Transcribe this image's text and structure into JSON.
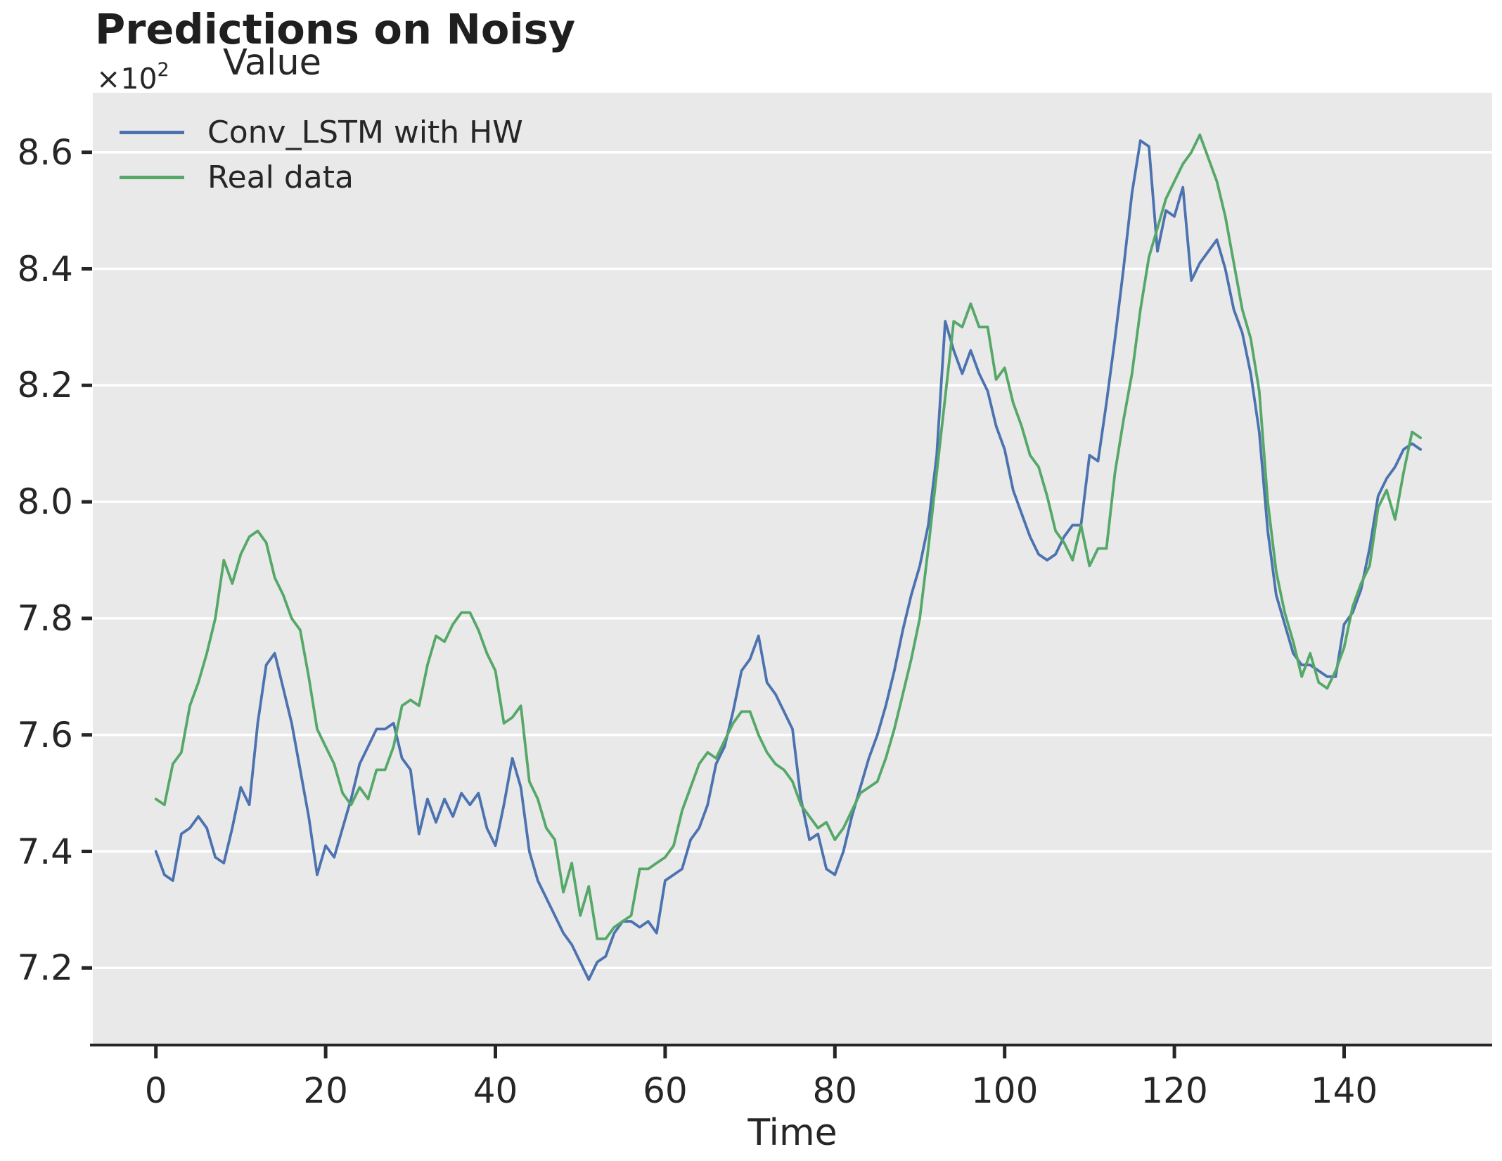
{
  "chart": {
    "title": "Predictions on Noisy",
    "y_label": "Value",
    "x_label": "Time",
    "y_offset_base": "×10",
    "y_offset_exp": "2"
  },
  "chart_data": {
    "type": "line",
    "title": "Predictions on Noisy",
    "xlabel": "Time",
    "ylabel": "Value",
    "y_offset_text": "×10²",
    "x": "index 0..149 (Time)",
    "xlim": [
      -7.4,
      157.4
    ],
    "ylim": [
      7.07,
      8.7
    ],
    "x_tick_values": [
      0,
      20,
      40,
      60,
      80,
      100,
      120,
      140
    ],
    "x_tick_labels": [
      "0",
      "20",
      "40",
      "60",
      "80",
      "100",
      "120",
      "140"
    ],
    "y_tick_values": [
      8.6,
      8.4,
      8.2,
      8.0,
      7.8,
      7.6,
      7.4,
      7.2
    ],
    "y_tick_labels": [
      "8.6",
      "8.4",
      "8.2",
      "8.0",
      "7.8",
      "7.6",
      "7.4",
      "7.2"
    ],
    "grid": "horizontal white lines on",
    "legend_position": "upper left, no frame",
    "plot_background": "#E9E9E9",
    "gridline_color": "#FFFFFF",
    "axis_color": "#262626",
    "series": [
      {
        "name": "Conv_LSTM with HW",
        "color": "#4C72B0",
        "values": [
          7.4,
          7.36,
          7.35,
          7.43,
          7.44,
          7.46,
          7.44,
          7.39,
          7.38,
          7.44,
          7.51,
          7.48,
          7.62,
          7.72,
          7.74,
          7.68,
          7.62,
          7.54,
          7.46,
          7.36,
          7.41,
          7.39,
          7.44,
          7.49,
          7.55,
          7.58,
          7.61,
          7.61,
          7.62,
          7.56,
          7.54,
          7.43,
          7.49,
          7.45,
          7.49,
          7.46,
          7.5,
          7.48,
          7.5,
          7.44,
          7.41,
          7.48,
          7.56,
          7.51,
          7.4,
          7.35,
          7.32,
          7.29,
          7.26,
          7.24,
          7.21,
          7.18,
          7.21,
          7.22,
          7.26,
          7.28,
          7.28,
          7.27,
          7.28,
          7.26,
          7.35,
          7.36,
          7.37,
          7.42,
          7.44,
          7.48,
          7.55,
          7.58,
          7.64,
          7.71,
          7.73,
          7.77,
          7.69,
          7.67,
          7.64,
          7.61,
          7.49,
          7.42,
          7.43,
          7.37,
          7.36,
          7.4,
          7.46,
          7.51,
          7.56,
          7.6,
          7.65,
          7.71,
          7.78,
          7.84,
          7.89,
          7.96,
          8.08,
          8.31,
          8.26,
          8.22,
          8.26,
          8.22,
          8.19,
          8.13,
          8.09,
          8.02,
          7.98,
          7.94,
          7.91,
          7.9,
          7.91,
          7.94,
          7.96,
          7.96,
          8.08,
          8.07,
          8.17,
          8.28,
          8.4,
          8.53,
          8.62,
          8.61,
          8.43,
          8.5,
          8.49,
          8.54,
          8.38,
          8.41,
          8.43,
          8.45,
          8.4,
          8.33,
          8.29,
          8.22,
          8.12,
          7.95,
          7.84,
          7.79,
          7.74,
          7.72,
          7.72,
          7.71,
          7.7,
          7.7,
          7.79,
          7.81,
          7.85,
          7.92,
          8.01,
          8.04,
          8.06,
          8.09,
          8.1,
          8.09
        ]
      },
      {
        "name": "Real data",
        "color": "#55A868",
        "values": [
          7.49,
          7.48,
          7.55,
          7.57,
          7.65,
          7.69,
          7.74,
          7.8,
          7.9,
          7.86,
          7.91,
          7.94,
          7.95,
          7.93,
          7.87,
          7.84,
          7.8,
          7.78,
          7.7,
          7.61,
          7.58,
          7.55,
          7.5,
          7.48,
          7.51,
          7.49,
          7.54,
          7.54,
          7.58,
          7.65,
          7.66,
          7.65,
          7.72,
          7.77,
          7.76,
          7.79,
          7.81,
          7.81,
          7.78,
          7.74,
          7.71,
          7.62,
          7.63,
          7.65,
          7.52,
          7.49,
          7.44,
          7.42,
          7.33,
          7.38,
          7.29,
          7.34,
          7.25,
          7.25,
          7.27,
          7.28,
          7.29,
          7.37,
          7.37,
          7.38,
          7.39,
          7.41,
          7.47,
          7.51,
          7.55,
          7.57,
          7.56,
          7.59,
          7.62,
          7.64,
          7.64,
          7.6,
          7.57,
          7.55,
          7.54,
          7.52,
          7.48,
          7.46,
          7.44,
          7.45,
          7.42,
          7.44,
          7.47,
          7.5,
          7.51,
          7.52,
          7.56,
          7.61,
          7.67,
          7.73,
          7.8,
          7.92,
          8.05,
          8.18,
          8.31,
          8.3,
          8.34,
          8.3,
          8.3,
          8.21,
          8.23,
          8.17,
          8.13,
          8.08,
          8.06,
          8.01,
          7.95,
          7.93,
          7.9,
          7.96,
          7.89,
          7.92,
          7.92,
          8.05,
          8.14,
          8.22,
          8.33,
          8.42,
          8.47,
          8.52,
          8.55,
          8.58,
          8.6,
          8.63,
          8.59,
          8.55,
          8.49,
          8.41,
          8.33,
          8.28,
          8.19,
          8.0,
          7.88,
          7.81,
          7.76,
          7.7,
          7.74,
          7.69,
          7.68,
          7.71,
          7.75,
          7.82,
          7.86,
          7.89,
          7.99,
          8.02,
          7.97,
          8.05,
          8.12,
          8.11
        ]
      }
    ]
  }
}
